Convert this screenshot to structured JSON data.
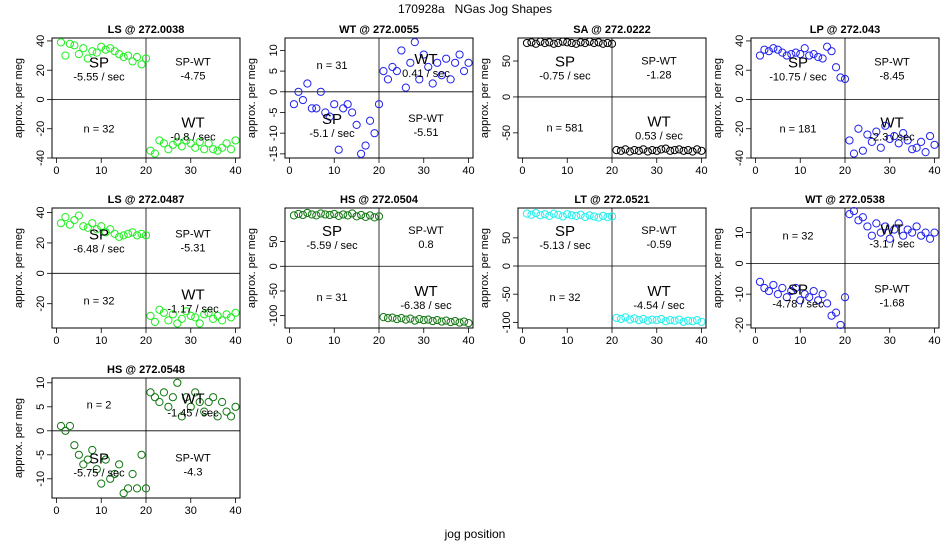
{
  "figure": {
    "title": "170928a   NGas Jog Shapes",
    "xlabel": "jog position"
  },
  "chart_data": [
    {
      "type": "scatter",
      "title": "LS @ 272.0038",
      "color": "#22ee22",
      "xlabel": "jog position",
      "ylabel": "approx. per meg",
      "xlim": [
        -1,
        41
      ],
      "ylim": [
        -40,
        42
      ],
      "xticks": [
        0,
        10,
        20,
        30,
        40
      ],
      "yticks": [
        -40,
        -20,
        0,
        20,
        40
      ],
      "x": [
        1,
        2,
        3,
        4,
        5,
        6,
        7,
        8,
        9,
        10,
        11,
        12,
        13,
        14,
        15,
        16,
        17,
        18,
        19,
        20,
        21,
        22,
        23,
        24,
        25,
        26,
        27,
        28,
        29,
        30,
        31,
        32,
        33,
        34,
        35,
        36,
        37,
        38,
        39,
        40
      ],
      "y": [
        39,
        30,
        38,
        37,
        31,
        35,
        28,
        33,
        32,
        36,
        34,
        35,
        33,
        31,
        29,
        30,
        26,
        29,
        24,
        28,
        -35,
        -37,
        -28,
        -30,
        -34,
        -31,
        -29,
        -32,
        -28,
        -30,
        -33,
        -29,
        -34,
        -30,
        -34,
        -35,
        -33,
        -30,
        -34,
        -28
      ],
      "labels": {
        "tl": {
          "big": "SP",
          "small": "-5.55 / sec"
        },
        "tr": {
          "big": "",
          "small": "SP-WT",
          "small2": "-4.75"
        },
        "bl": {
          "n": "n = 32"
        },
        "br": {
          "big": "WT",
          "small": "-0.8 / sec"
        }
      }
    },
    {
      "type": "scatter",
      "title": "WT @ 272.0055",
      "color": "#2222ee",
      "xlabel": "jog position",
      "ylabel": "approx. per meg",
      "xlim": [
        -1,
        41
      ],
      "ylim": [
        -16,
        13
      ],
      "xticks": [
        0,
        10,
        20,
        30,
        40
      ],
      "yticks": [
        -15,
        -10,
        -5,
        0,
        5,
        10
      ],
      "x": [
        1,
        2,
        3,
        4,
        5,
        6,
        7,
        8,
        9,
        10,
        11,
        12,
        13,
        14,
        15,
        16,
        17,
        18,
        19,
        20,
        21,
        22,
        23,
        24,
        25,
        26,
        27,
        28,
        29,
        30,
        31,
        32,
        33,
        34,
        35,
        36,
        37,
        38,
        39,
        40
      ],
      "y": [
        -3,
        0,
        -2,
        2,
        -4,
        -4,
        0,
        -5,
        -6,
        -3,
        -14,
        -4,
        -3,
        -5,
        -8,
        -15,
        -13,
        -7,
        -10,
        -3,
        5,
        3,
        6,
        5,
        10,
        1,
        7,
        12,
        3,
        9,
        6,
        2,
        7,
        4,
        8,
        3,
        7,
        9,
        5,
        7
      ],
      "labels": {
        "tl": {
          "n": "n = 31"
        },
        "tr": {
          "big": "WT",
          "small": "0.41 / sec"
        },
        "bl": {
          "big": "SP",
          "small": "-5.1 / sec"
        },
        "br": {
          "small": "SP-WT",
          "small2": "-5.51"
        }
      }
    },
    {
      "type": "scatter",
      "title": "SA @ 272.0222",
      "color": "#000000",
      "xlabel": "jog position",
      "ylabel": "approx. per meg",
      "xlim": [
        -1,
        41
      ],
      "ylim": [
        -85,
        82
      ],
      "xticks": [
        0,
        10,
        20,
        30,
        40
      ],
      "yticks": [
        -50,
        0,
        50
      ],
      "x": [
        1,
        2,
        3,
        4,
        5,
        6,
        7,
        8,
        9,
        10,
        11,
        12,
        13,
        14,
        15,
        16,
        17,
        18,
        19,
        20,
        21,
        22,
        23,
        24,
        25,
        26,
        27,
        28,
        29,
        30,
        31,
        32,
        33,
        34,
        35,
        36,
        37,
        38,
        39,
        40
      ],
      "y": [
        75,
        76,
        74,
        77,
        75,
        76,
        74,
        75,
        77,
        76,
        75,
        74,
        76,
        75,
        77,
        75,
        76,
        74,
        75,
        74,
        -74,
        -75,
        -73,
        -76,
        -74,
        -75,
        -73,
        -76,
        -74,
        -75,
        -73,
        -72,
        -75,
        -74,
        -73,
        -75,
        -74,
        -76,
        -73,
        -75
      ],
      "labels": {
        "tl": {
          "big": "SP",
          "small": "-0.75 / sec"
        },
        "tr": {
          "small": "SP-WT",
          "small2": "-1.28"
        },
        "bl": {
          "n": "n = 581"
        },
        "br": {
          "big": "WT",
          "small": "0.53 / sec"
        }
      }
    },
    {
      "type": "scatter",
      "title": "LP @ 272.043",
      "color": "#2222ee",
      "xlabel": "jog position",
      "ylabel": "approx. per meg",
      "xlim": [
        -1,
        41
      ],
      "ylim": [
        -40,
        42
      ],
      "xticks": [
        0,
        10,
        20,
        30,
        40
      ],
      "yticks": [
        -40,
        -20,
        0,
        20,
        40
      ],
      "x": [
        1,
        2,
        3,
        4,
        5,
        6,
        7,
        8,
        9,
        10,
        11,
        12,
        13,
        14,
        15,
        16,
        17,
        18,
        19,
        20,
        21,
        22,
        23,
        24,
        25,
        26,
        27,
        28,
        29,
        30,
        31,
        32,
        33,
        34,
        35,
        36,
        37,
        38,
        39,
        40
      ],
      "y": [
        30,
        34,
        33,
        35,
        34,
        32,
        30,
        31,
        32,
        31,
        35,
        30,
        31,
        29,
        28,
        36,
        33,
        22,
        15,
        14,
        -28,
        -37,
        -20,
        -35,
        -24,
        -29,
        -22,
        -33,
        -18,
        -27,
        -25,
        -30,
        -23,
        -28,
        -34,
        -33,
        -29,
        -36,
        -25,
        -31
      ],
      "labels": {
        "tl": {
          "big": "SP",
          "small": "-10.75 / sec"
        },
        "tr": {
          "small": "SP-WT",
          "small2": "-8.45"
        },
        "bl": {
          "n": "n = 181"
        },
        "br": {
          "big": "WT",
          "small": "-2.3 / sec"
        }
      }
    },
    {
      "type": "scatter",
      "title": "LS @ 272.0487",
      "color": "#22ee22",
      "xlabel": "jog position",
      "ylabel": "approx. per meg",
      "xlim": [
        -1,
        41
      ],
      "ylim": [
        -36,
        43
      ],
      "xticks": [
        0,
        10,
        20,
        30,
        40
      ],
      "yticks": [
        -20,
        0,
        20,
        40
      ],
      "x": [
        1,
        2,
        3,
        4,
        5,
        6,
        7,
        8,
        9,
        10,
        11,
        12,
        13,
        14,
        15,
        16,
        17,
        18,
        19,
        20,
        21,
        22,
        23,
        24,
        25,
        26,
        27,
        28,
        29,
        30,
        31,
        32,
        33,
        34,
        35,
        36,
        37,
        38,
        39,
        40
      ],
      "y": [
        33,
        37,
        32,
        35,
        38,
        31,
        30,
        33,
        29,
        31,
        27,
        29,
        26,
        24,
        25,
        26,
        27,
        25,
        26,
        25,
        -28,
        -32,
        -24,
        -26,
        -31,
        -27,
        -33,
        -30,
        -25,
        -28,
        -29,
        -33,
        -27,
        -26,
        -30,
        -28,
        -31,
        -27,
        -29,
        -26
      ],
      "labels": {
        "tl": {
          "big": "SP",
          "small": "-6.48 / sec"
        },
        "tr": {
          "small": "SP-WT",
          "small2": "-5.31"
        },
        "bl": {
          "n": "n = 32"
        },
        "br": {
          "big": "WT",
          "small": "-1.17 / sec"
        }
      }
    },
    {
      "type": "scatter",
      "title": "HS @ 272.0504",
      "color": "#117711",
      "xlabel": "jog position",
      "ylabel": "approx. per meg",
      "xlim": [
        -1,
        41
      ],
      "ylim": [
        -125,
        118
      ],
      "xticks": [
        0,
        10,
        20,
        30,
        40
      ],
      "yticks": [
        -100,
        -50,
        0,
        50
      ],
      "x": [
        1,
        2,
        3,
        4,
        5,
        6,
        7,
        8,
        9,
        10,
        11,
        12,
        13,
        14,
        15,
        16,
        17,
        18,
        19,
        20,
        21,
        22,
        23,
        24,
        25,
        26,
        27,
        28,
        29,
        30,
        31,
        32,
        33,
        34,
        35,
        36,
        37,
        38,
        39,
        40
      ],
      "y": [
        103,
        106,
        104,
        108,
        105,
        103,
        107,
        105,
        104,
        106,
        102,
        105,
        103,
        107,
        101,
        104,
        100,
        103,
        99,
        101,
        -103,
        -105,
        -104,
        -107,
        -105,
        -108,
        -106,
        -110,
        -107,
        -109,
        -108,
        -111,
        -109,
        -112,
        -110,
        -113,
        -111,
        -114,
        -112,
        -115
      ],
      "labels": {
        "tl": {
          "big": "SP",
          "small": "-5.59 / sec"
        },
        "tr": {
          "small": "SP-WT",
          "small2": "0.8"
        },
        "bl": {
          "n": "n = 31"
        },
        "br": {
          "big": "WT",
          "small": "-6.38 / sec"
        }
      }
    },
    {
      "type": "scatter",
      "title": "LT @ 272.0521",
      "color": "#22eeee",
      "xlabel": "jog position",
      "ylabel": "approx. per meg",
      "xlim": [
        -1,
        41
      ],
      "ylim": [
        -110,
        103
      ],
      "xticks": [
        0,
        10,
        20,
        30,
        40
      ],
      "yticks": [
        -100,
        -50,
        0,
        50
      ],
      "x": [
        1,
        2,
        3,
        4,
        5,
        6,
        7,
        8,
        9,
        10,
        11,
        12,
        13,
        14,
        15,
        16,
        17,
        18,
        19,
        20,
        21,
        22,
        23,
        24,
        25,
        26,
        27,
        28,
        29,
        30,
        31,
        32,
        33,
        34,
        35,
        36,
        37,
        38,
        39,
        40
      ],
      "y": [
        93,
        91,
        94,
        90,
        92,
        89,
        93,
        91,
        88,
        92,
        90,
        89,
        91,
        87,
        90,
        88,
        86,
        89,
        87,
        88,
        -92,
        -94,
        -91,
        -95,
        -93,
        -96,
        -94,
        -97,
        -95,
        -96,
        -94,
        -98,
        -96,
        -97,
        -95,
        -99,
        -97,
        -98,
        -96,
        -99
      ],
      "labels": {
        "tl": {
          "big": "SP",
          "small": "-5.13 / sec"
        },
        "tr": {
          "small": "SP-WT",
          "small2": "-0.59"
        },
        "bl": {
          "n": "n = 32"
        },
        "br": {
          "big": "WT",
          "small": "-4.54 / sec"
        }
      }
    },
    {
      "type": "scatter",
      "title": "WT @ 272.0538",
      "color": "#2222ee",
      "xlabel": "jog position",
      "ylabel": "approx. per meg",
      "xlim": [
        -1,
        41
      ],
      "ylim": [
        -21,
        18
      ],
      "xticks": [
        0,
        10,
        20,
        30,
        40
      ],
      "yticks": [
        -20,
        -10,
        0,
        10
      ],
      "x": [
        1,
        2,
        3,
        4,
        5,
        6,
        7,
        8,
        9,
        10,
        11,
        12,
        13,
        14,
        15,
        16,
        17,
        18,
        19,
        20,
        21,
        22,
        23,
        24,
        25,
        26,
        27,
        28,
        29,
        30,
        31,
        32,
        33,
        34,
        35,
        36,
        37,
        38,
        39,
        40
      ],
      "y": [
        -6,
        -8,
        -9,
        -7,
        -10,
        -8,
        -11,
        -9,
        -8,
        -12,
        -10,
        -11,
        -9,
        -12,
        -10,
        -13,
        -17,
        -16,
        -20,
        -11,
        16,
        17,
        14,
        15,
        12,
        9,
        13,
        10,
        12,
        8,
        11,
        13,
        9,
        11,
        10,
        12,
        9,
        10,
        8,
        10
      ],
      "labels": {
        "tl": {
          "n": "n = 32"
        },
        "tr": {
          "big": "WT",
          "small": "-3.1 / sec"
        },
        "bl": {
          "big": "SP",
          "small": "-4.78 / sec"
        },
        "br": {
          "small": "SP-WT",
          "small2": "-1.68"
        }
      }
    },
    {
      "type": "scatter",
      "title": "HS @ 272.0548",
      "color": "#117711",
      "xlabel": "jog position",
      "ylabel": "approx. per meg",
      "xlim": [
        -1,
        41
      ],
      "ylim": [
        -14,
        11
      ],
      "xticks": [
        0,
        10,
        20,
        30,
        40
      ],
      "yticks": [
        -10,
        -5,
        0,
        5,
        10
      ],
      "x": [
        1,
        2,
        3,
        4,
        5,
        6,
        7,
        8,
        9,
        10,
        11,
        12,
        13,
        14,
        15,
        16,
        17,
        18,
        19,
        20,
        21,
        22,
        23,
        24,
        25,
        26,
        27,
        28,
        29,
        30,
        31,
        32,
        33,
        34,
        35,
        36,
        37,
        38,
        39,
        40
      ],
      "y": [
        1,
        0,
        1,
        -3,
        -5,
        -7,
        -6,
        -4,
        -8,
        -11,
        -6,
        -10,
        -9,
        -7,
        -13,
        -12,
        -9,
        -12,
        -5,
        -12,
        8,
        7,
        6,
        8,
        5,
        7,
        10,
        3,
        7,
        5,
        8,
        6,
        4,
        6,
        7,
        3,
        6,
        4,
        3,
        5
      ],
      "labels": {
        "tl": {
          "n": "n = 2"
        },
        "tr": {
          "big": "WT",
          "small": "-1.45 / sec"
        },
        "bl": {
          "big": "SP",
          "small": "-5.75 / sec"
        },
        "br": {
          "small": "SP-WT",
          "small2": "-4.3"
        }
      }
    }
  ]
}
